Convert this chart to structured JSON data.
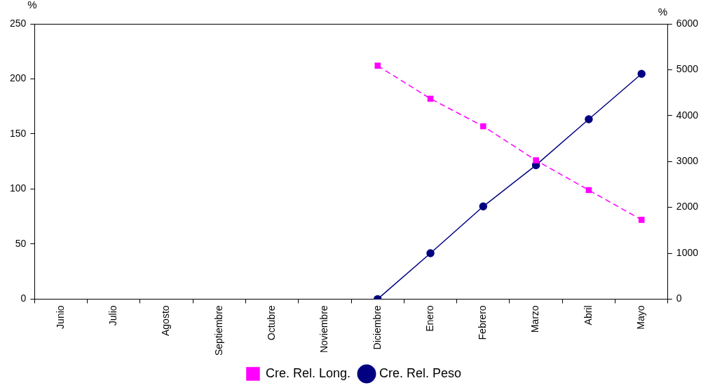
{
  "chart_data": {
    "type": "line",
    "ylabel": "%",
    "y2label": "%",
    "categories": [
      "Junio",
      "Julio",
      "Agosto",
      "Septiembre",
      "Octubre",
      "Noviembre",
      "Diciembre",
      "Enero",
      "Febrero",
      "Marzo",
      "Abril",
      "Mayo"
    ],
    "series": [
      {
        "name": "Cre. Rel. Long.",
        "color": "#ff00ff",
        "marker": "square",
        "line_style": "dashed",
        "values": [
          null,
          null,
          null,
          null,
          null,
          null,
          212,
          182,
          157,
          126,
          99,
          72
        ]
      },
      {
        "name": "Cre. Rel. Peso",
        "color": "#000080",
        "marker": "circle",
        "line_style": "solid",
        "axis": "y2",
        "values": [
          null,
          null,
          null,
          null,
          null,
          null,
          0,
          1000,
          2020,
          2920,
          3920,
          4910
        ]
      }
    ],
    "ylim": [
      0,
      250
    ],
    "yticks": [
      0,
      50,
      100,
      150,
      200,
      250
    ],
    "y2lim": [
      0,
      6000
    ],
    "y2ticks": [
      0,
      1000,
      2000,
      3000,
      4000,
      5000,
      6000
    ],
    "grid": false,
    "legend": "bottom"
  }
}
